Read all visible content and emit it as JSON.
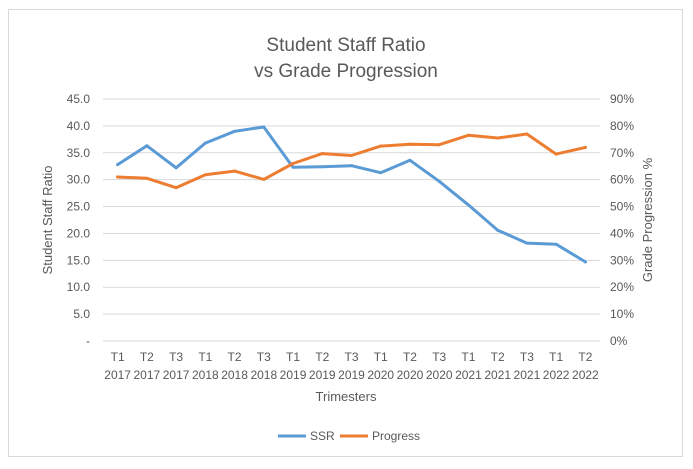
{
  "chart_data": {
    "type": "line",
    "title_line1": "Student Staff Ratio",
    "title_line2": "vs Grade Progression",
    "xlabel": "Trimesters",
    "ylabel_left": "Student Staff Ratio",
    "ylabel_right": "Grade Progression %",
    "categories": [
      [
        "T1",
        "2017"
      ],
      [
        "T2",
        "2017"
      ],
      [
        "T3",
        "2017"
      ],
      [
        "T1",
        "2018"
      ],
      [
        "T2",
        "2018"
      ],
      [
        "T3",
        "2018"
      ],
      [
        "T1",
        "2019"
      ],
      [
        "T2",
        "2019"
      ],
      [
        "T3",
        "2019"
      ],
      [
        "T1",
        "2020"
      ],
      [
        "T2",
        "2020"
      ],
      [
        "T3",
        "2020"
      ],
      [
        "T1",
        "2021"
      ],
      [
        "T2",
        "2021"
      ],
      [
        "T3",
        "2021"
      ],
      [
        "T1",
        "2022"
      ],
      [
        "T2",
        "2022"
      ]
    ],
    "ylim_left": [
      0,
      45
    ],
    "ylim_right": [
      0,
      0.9
    ],
    "left_ticks": [
      "-",
      "5.0",
      "10.0",
      "15.0",
      "20.0",
      "25.0",
      "30.0",
      "35.0",
      "40.0",
      "45.0"
    ],
    "right_ticks": [
      "0%",
      "10%",
      "20%",
      "30%",
      "40%",
      "50%",
      "60%",
      "70%",
      "80%",
      "90%"
    ],
    "grid": true,
    "legend_position": "bottom",
    "series": [
      {
        "name": "SSR",
        "axis": "left",
        "color": "#5b9bd5",
        "values": [
          32.8,
          36.3,
          32.2,
          36.8,
          39.0,
          39.8,
          32.3,
          32.4,
          32.6,
          31.3,
          33.6,
          29.7,
          25.3,
          20.6,
          18.2,
          18.0,
          14.7
        ]
      },
      {
        "name": "Progress",
        "axis": "right",
        "color": "#ed7d31",
        "values": [
          0.61,
          0.605,
          0.57,
          0.618,
          0.632,
          0.601,
          0.66,
          0.697,
          0.69,
          0.725,
          0.732,
          0.73,
          0.765,
          0.755,
          0.77,
          0.695,
          0.72
        ]
      }
    ]
  }
}
